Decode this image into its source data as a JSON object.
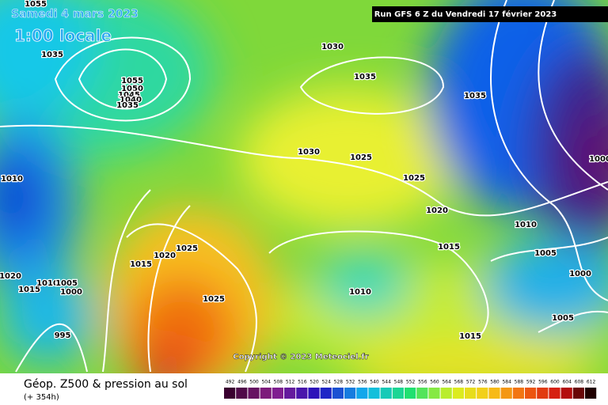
{
  "header": {
    "date": "Samedi 4 mars 2023",
    "time": "1:00 locale",
    "run": "Run GFS 6 Z du Vendredi 17 février 2023"
  },
  "copyright": "Copyright © 2023 Meteociel.fr",
  "footer": {
    "title": "Géop. Z500 & pression au sol",
    "lead": "(+ 354h)"
  },
  "isobar_labels": [
    1055,
    1035,
    1030,
    1035,
    1035,
    1055,
    1050,
    1045,
    1040,
    1035,
    1030,
    1025,
    1025,
    1020,
    1010,
    1015,
    1020,
    1025,
    1015,
    1010,
    1005,
    1000,
    1025,
    1010,
    1005,
    1000,
    1020,
    1015,
    1010,
    995,
    1005,
    1015,
    1000
  ],
  "scale": [
    492,
    496,
    500,
    504,
    508,
    512,
    516,
    520,
    524,
    528,
    532,
    536,
    540,
    544,
    548,
    552,
    556,
    560,
    564,
    568,
    572,
    576,
    580,
    584,
    588,
    592,
    596,
    600,
    604,
    608,
    612
  ]
}
